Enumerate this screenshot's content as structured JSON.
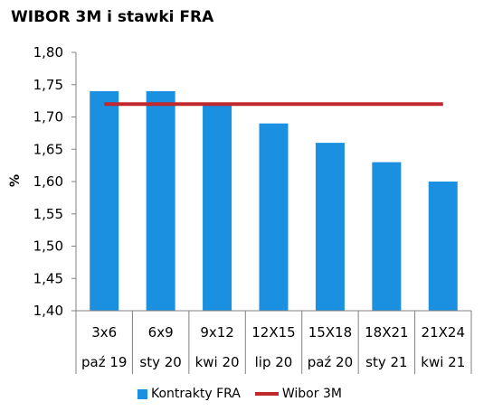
{
  "chart_data": {
    "type": "bar",
    "title": "WIBOR 3M i stawki FRA",
    "ylabel": "%",
    "ylim": [
      1.4,
      1.8
    ],
    "yticks": [
      "1,40",
      "1,45",
      "1,50",
      "1,55",
      "1,60",
      "1,65",
      "1,70",
      "1,75",
      "1,80"
    ],
    "categories": [
      "3x6",
      "6x9",
      "9x12",
      "12X15",
      "15X18",
      "18X21",
      "21X24"
    ],
    "categories_2": [
      "paź 19",
      "sty 20",
      "kwi 20",
      "lip 20",
      "paź 20",
      "sty 21",
      "kwi 21"
    ],
    "series": [
      {
        "name": "Kontrakty FRA",
        "kind": "bar",
        "color": "#1b8fe0",
        "values": [
          1.74,
          1.74,
          1.72,
          1.69,
          1.66,
          1.63,
          1.6
        ]
      },
      {
        "name": "Wibor 3M",
        "kind": "line",
        "color": "#c0282d",
        "values": [
          1.72,
          1.72,
          1.72,
          1.72,
          1.72,
          1.72,
          1.72
        ]
      }
    ],
    "legend_position": "bottom",
    "grid": false
  }
}
